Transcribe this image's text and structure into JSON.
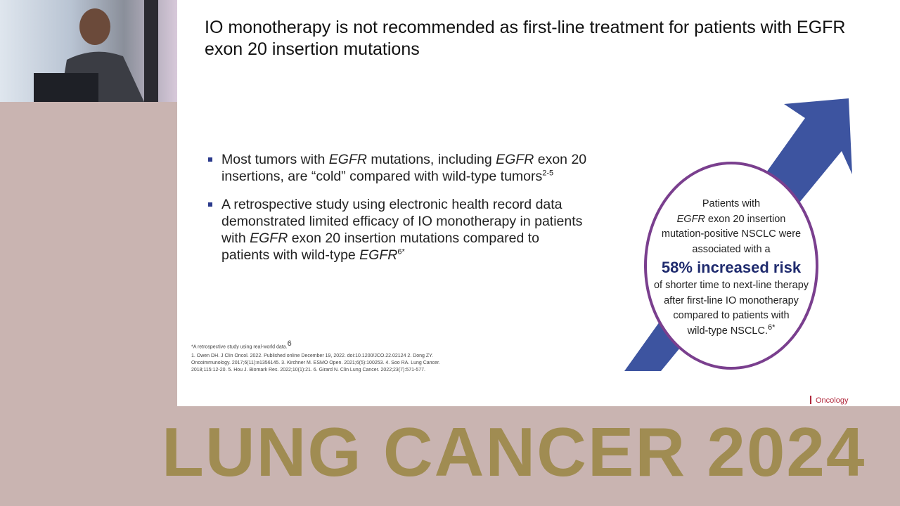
{
  "slide": {
    "title": "IO monotherapy is not recommended as first-line treatment for patients with EGFR exon 20 insertion mutations",
    "bullets": [
      [
        {
          "text": "Most tumors with "
        },
        {
          "text": "EGFR",
          "style": "italic"
        },
        {
          "text": " mutations, including "
        },
        {
          "text": "EGFR",
          "style": "italic"
        },
        {
          "text": " exon 20 insertions, are “cold” compared with wild-type tumors"
        },
        {
          "text": "2-5",
          "style": "sup"
        }
      ],
      [
        {
          "text": "A retrospective study using electronic health record data demonstrated limited efficacy of IO monotherapy in patients with "
        },
        {
          "text": "EGFR",
          "style": "italic"
        },
        {
          "text": " exon 20 insertion mutations compared to patients with wild-type "
        },
        {
          "text": "EGFR",
          "style": "italic"
        },
        {
          "text": "6*",
          "style": "sup"
        }
      ]
    ],
    "callout": [
      [
        {
          "text": "Patients with"
        }
      ],
      [
        {
          "text": "EGFR",
          "style": "italic"
        },
        {
          "text": " exon 20 insertion"
        }
      ],
      [
        {
          "text": "mutation-positive NSCLC were"
        }
      ],
      [
        {
          "text": "associated with a"
        }
      ],
      [
        {
          "text": "58% increased risk",
          "style": "highlight"
        }
      ],
      [
        {
          "text": "of shorter time to next-line therapy"
        }
      ],
      [
        {
          "text": "after first-line IO monotherapy"
        }
      ],
      [
        {
          "text": "compared to patients with"
        }
      ],
      [
        {
          "text": "wild-type NSCLC."
        },
        {
          "text": "6*",
          "style": "sup"
        }
      ]
    ],
    "footnote": [
      {
        "text": "*A retrospective study using real-world data."
      },
      {
        "text": "6",
        "style": "sup"
      }
    ],
    "references": [
      "1. Owen DH. J Clin Oncol. 2022. Published online December 19, 2022. doi:10.1200/JCO.22.02124 2. Dong ZY.",
      "Oncoimmunology. 2017;6(11):e1356145. 3. Kirchner M. ESMO Open. 2021;6(5):100253. 4. Soo RA. Lung Cancer.",
      "2018;115:12-20. 5. Hou J. Biomark Res. 2022;10(1):21. 6. Girard N. Clin Lung Cancer. 2022;23(7):571-577."
    ],
    "brand": "Oncology"
  },
  "banner": "LUNG CANCER 2024"
}
